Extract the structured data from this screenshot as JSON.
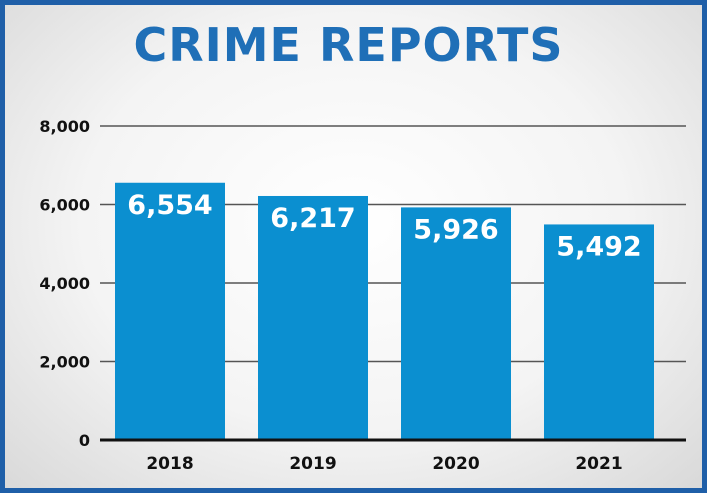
{
  "title": "CRIME REPORTS",
  "colors": {
    "bar": "#0b8fd0",
    "frame": "#1f5fa8",
    "title": "#1f6fb7",
    "bar_label": "#ffffff",
    "axis_text": "#111111",
    "grid": "#555555"
  },
  "chart_data": {
    "type": "bar",
    "title": "CRIME REPORTS",
    "categories": [
      "2018",
      "2019",
      "2020",
      "2021"
    ],
    "values": [
      6554,
      6217,
      5926,
      5492
    ],
    "value_labels": [
      "6,554",
      "6,217",
      "5,926",
      "5,492"
    ],
    "ylim": [
      0,
      8000
    ],
    "yticks": [
      0,
      2000,
      4000,
      6000,
      8000
    ],
    "ytick_labels": [
      "0",
      "2,000",
      "4,000",
      "6,000",
      "8,000"
    ],
    "grid": true,
    "legend": "none"
  }
}
